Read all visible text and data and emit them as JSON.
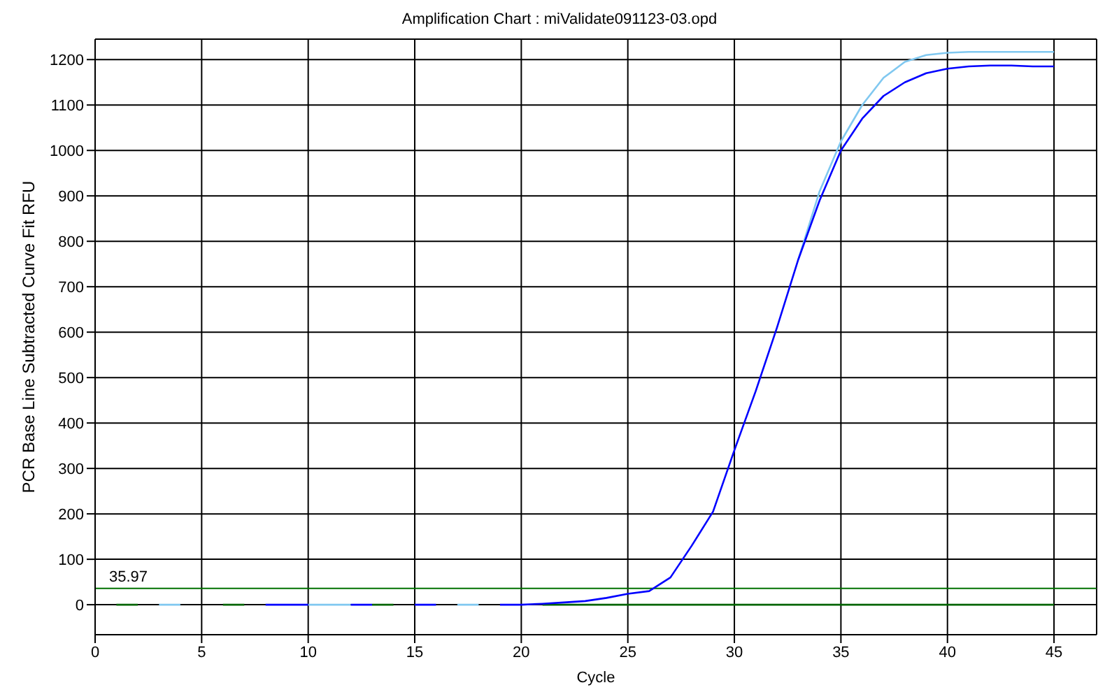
{
  "chart_data": {
    "type": "line",
    "title": "Amplification Chart : miValidate091123-03.opd",
    "xlabel": "Cycle",
    "ylabel": "PCR Base Line Subtracted Curve Fit RFU",
    "x": [
      1,
      2,
      3,
      4,
      5,
      6,
      7,
      8,
      9,
      10,
      11,
      12,
      13,
      14,
      15,
      16,
      17,
      18,
      19,
      20,
      21,
      22,
      23,
      24,
      25,
      26,
      27,
      28,
      29,
      30,
      31,
      32,
      33,
      34,
      35,
      36,
      37,
      38,
      39,
      40,
      41,
      42,
      43,
      44,
      45
    ],
    "series": [
      {
        "color": "#006400",
        "values": [
          0,
          0,
          null,
          null,
          null,
          0,
          0,
          null,
          null,
          null,
          null,
          null,
          0,
          0,
          null,
          null,
          null,
          null,
          null,
          null,
          0,
          0,
          0,
          0,
          0,
          0,
          0,
          0,
          0,
          0,
          0,
          0,
          0,
          0,
          0,
          0,
          0,
          0,
          0,
          0,
          0,
          0,
          0,
          0,
          0
        ]
      },
      {
        "color": "#80c8f0",
        "values": [
          null,
          null,
          0,
          0,
          null,
          null,
          null,
          null,
          null,
          0,
          0,
          0,
          null,
          null,
          null,
          null,
          0,
          0,
          null,
          null,
          null,
          null,
          null,
          null,
          null,
          null,
          null,
          null,
          null,
          null,
          null,
          null,
          760,
          910,
          1020,
          1100,
          1160,
          1195,
          1210,
          1215,
          1217,
          1217,
          1217,
          1217,
          1217
        ]
      },
      {
        "color": "#0000ff",
        "values": [
          null,
          null,
          null,
          null,
          null,
          null,
          null,
          0,
          0,
          0,
          null,
          0,
          0,
          null,
          0,
          0,
          null,
          null,
          0,
          0,
          2,
          5,
          8,
          15,
          24,
          30,
          60,
          130,
          205,
          340,
          470,
          610,
          760,
          890,
          1000,
          1070,
          1120,
          1150,
          1170,
          1180,
          1185,
          1187,
          1187,
          1185,
          1185
        ]
      }
    ],
    "xlim": [
      0,
      47
    ],
    "xticks": [
      0,
      5,
      10,
      15,
      20,
      25,
      30,
      35,
      40,
      45
    ],
    "ylim": [
      -66,
      1245
    ],
    "yticks": [
      0,
      100,
      200,
      300,
      400,
      500,
      600,
      700,
      800,
      900,
      1000,
      1100,
      1200
    ],
    "ref_lines": [
      {
        "axis": "y",
        "value": 35.97,
        "label": "35.97",
        "color": "#007000"
      }
    ],
    "grid": true,
    "marker": "none",
    "line_style": "solid"
  }
}
